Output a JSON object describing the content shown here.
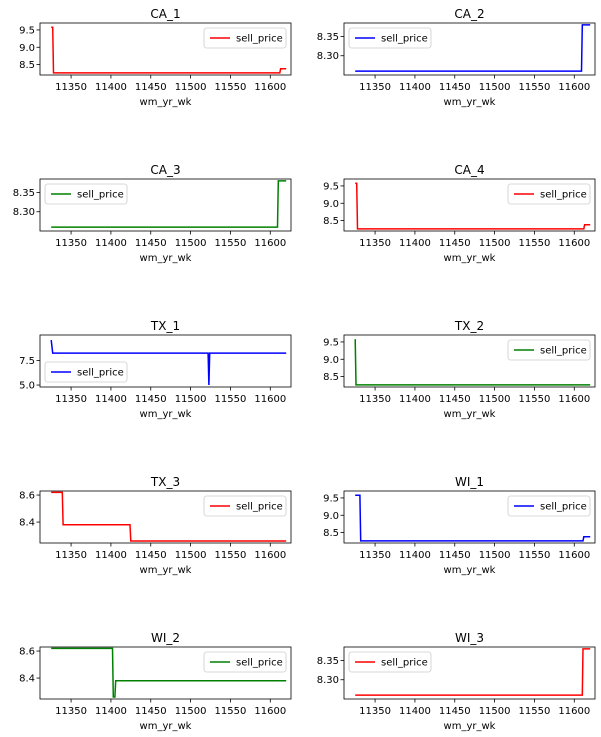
{
  "colors": {
    "red": "#ff0000",
    "blue": "#0000ff",
    "green": "#008000"
  },
  "chart_data": [
    {
      "type": "line",
      "title": "CA_1",
      "xlabel": "wm_yr_wk",
      "ylabel": "",
      "xlim": [
        11311,
        11626
      ],
      "ylim": [
        8.2,
        9.7
      ],
      "xticks": [
        11350,
        11400,
        11450,
        11500,
        11550,
        11600
      ],
      "yticks": [
        8.5,
        9.0,
        9.5
      ],
      "ytick_labels": [
        "8.5",
        "9.0",
        "9.5"
      ],
      "legend": "upper right",
      "series": [
        {
          "name": "sell_price",
          "color": "#ff0000",
          "x": [
            11325,
            11327,
            11328,
            11612,
            11613,
            11620
          ],
          "y": [
            9.58,
            9.58,
            8.26,
            8.26,
            8.38,
            8.38
          ]
        }
      ]
    },
    {
      "type": "line",
      "title": "CA_2",
      "xlabel": "wm_yr_wk",
      "ylabel": "",
      "xlim": [
        11311,
        11626
      ],
      "ylim": [
        8.25,
        8.385
      ],
      "xticks": [
        11350,
        11400,
        11450,
        11500,
        11550,
        11600
      ],
      "yticks": [
        8.3,
        8.35
      ],
      "ytick_labels": [
        "8.30",
        "8.35"
      ],
      "legend": "upper left",
      "series": [
        {
          "name": "sell_price",
          "color": "#0000ff",
          "x": [
            11325,
            11609,
            11610,
            11620
          ],
          "y": [
            8.26,
            8.26,
            8.38,
            8.38
          ]
        }
      ]
    },
    {
      "type": "line",
      "title": "CA_3",
      "xlabel": "wm_yr_wk",
      "ylabel": "",
      "xlim": [
        11311,
        11626
      ],
      "ylim": [
        8.25,
        8.385
      ],
      "xticks": [
        11350,
        11400,
        11450,
        11500,
        11550,
        11600
      ],
      "yticks": [
        8.3,
        8.35
      ],
      "ytick_labels": [
        "8.30",
        "8.35"
      ],
      "legend": "upper left",
      "series": [
        {
          "name": "sell_price",
          "color": "#008000",
          "x": [
            11325,
            11609,
            11610,
            11620
          ],
          "y": [
            8.26,
            8.26,
            8.38,
            8.38
          ]
        }
      ]
    },
    {
      "type": "line",
      "title": "CA_4",
      "xlabel": "wm_yr_wk",
      "ylabel": "",
      "xlim": [
        11311,
        11626
      ],
      "ylim": [
        8.2,
        9.7
      ],
      "xticks": [
        11350,
        11400,
        11450,
        11500,
        11550,
        11600
      ],
      "yticks": [
        8.5,
        9.0,
        9.5
      ],
      "ytick_labels": [
        "8.5",
        "9.0",
        "9.5"
      ],
      "legend": "upper right",
      "series": [
        {
          "name": "sell_price",
          "color": "#ff0000",
          "x": [
            11325,
            11327,
            11328,
            11612,
            11613,
            11620
          ],
          "y": [
            9.58,
            9.58,
            8.26,
            8.26,
            8.38,
            8.38
          ]
        }
      ]
    },
    {
      "type": "line",
      "title": "TX_1",
      "xlabel": "wm_yr_wk",
      "ylabel": "",
      "xlim": [
        11311,
        11626
      ],
      "ylim": [
        4.8,
        10.1
      ],
      "xticks": [
        11350,
        11400,
        11450,
        11500,
        11550,
        11600
      ],
      "yticks": [
        5.0,
        7.5
      ],
      "ytick_labels": [
        "5.0",
        "7.5"
      ],
      "legend": "lower left",
      "series": [
        {
          "name": "sell_price",
          "color": "#0000ff",
          "x": [
            11325,
            11327,
            11522,
            11523,
            11524,
            11620
          ],
          "y": [
            9.58,
            8.26,
            8.26,
            5.0,
            8.26,
            8.26
          ]
        }
      ]
    },
    {
      "type": "line",
      "title": "TX_2",
      "xlabel": "wm_yr_wk",
      "ylabel": "",
      "xlim": [
        11311,
        11626
      ],
      "ylim": [
        8.2,
        9.7
      ],
      "xticks": [
        11350,
        11400,
        11450,
        11500,
        11550,
        11600
      ],
      "yticks": [
        8.5,
        9.0,
        9.5
      ],
      "ytick_labels": [
        "8.5",
        "9.0",
        "9.5"
      ],
      "legend": "upper right",
      "series": [
        {
          "name": "sell_price",
          "color": "#008000",
          "x": [
            11325,
            11326,
            11620
          ],
          "y": [
            9.58,
            8.26,
            8.26
          ]
        }
      ]
    },
    {
      "type": "line",
      "title": "TX_3",
      "xlabel": "wm_yr_wk",
      "ylabel": "",
      "xlim": [
        11311,
        11626
      ],
      "ylim": [
        8.245,
        8.63
      ],
      "xticks": [
        11350,
        11400,
        11450,
        11500,
        11550,
        11600
      ],
      "yticks": [
        8.4,
        8.6
      ],
      "ytick_labels": [
        "8.4",
        "8.6"
      ],
      "legend": "upper right",
      "series": [
        {
          "name": "sell_price",
          "color": "#ff0000",
          "x": [
            11325,
            11339,
            11340,
            11424,
            11425,
            11620
          ],
          "y": [
            8.62,
            8.62,
            8.38,
            8.38,
            8.26,
            8.26
          ]
        }
      ]
    },
    {
      "type": "line",
      "title": "WI_1",
      "xlabel": "wm_yr_wk",
      "ylabel": "",
      "xlim": [
        11311,
        11626
      ],
      "ylim": [
        8.2,
        9.7
      ],
      "xticks": [
        11350,
        11400,
        11450,
        11500,
        11550,
        11600
      ],
      "yticks": [
        8.5,
        9.0,
        9.5
      ],
      "ytick_labels": [
        "8.5",
        "9.0",
        "9.5"
      ],
      "legend": "upper right",
      "series": [
        {
          "name": "sell_price",
          "color": "#0000ff",
          "x": [
            11325,
            11331,
            11332,
            11611,
            11612,
            11620
          ],
          "y": [
            9.58,
            9.58,
            8.26,
            8.26,
            8.38,
            8.38
          ]
        }
      ]
    },
    {
      "type": "line",
      "title": "WI_2",
      "xlabel": "wm_yr_wk",
      "ylabel": "",
      "xlim": [
        11311,
        11626
      ],
      "ylim": [
        8.245,
        8.63
      ],
      "xticks": [
        11350,
        11400,
        11450,
        11500,
        11550,
        11600
      ],
      "yticks": [
        8.4,
        8.6
      ],
      "ytick_labels": [
        "8.4",
        "8.6"
      ],
      "legend": "upper right",
      "series": [
        {
          "name": "sell_price",
          "color": "#008000",
          "x": [
            11325,
            11402,
            11403,
            11405,
            11406,
            11620
          ],
          "y": [
            8.62,
            8.62,
            8.26,
            8.26,
            8.38,
            8.38
          ]
        }
      ]
    },
    {
      "type": "line",
      "title": "WI_3",
      "xlabel": "wm_yr_wk",
      "ylabel": "",
      "xlim": [
        11311,
        11626
      ],
      "ylim": [
        8.25,
        8.385
      ],
      "xticks": [
        11350,
        11400,
        11450,
        11500,
        11550,
        11600
      ],
      "yticks": [
        8.3,
        8.35
      ],
      "ytick_labels": [
        "8.30",
        "8.35"
      ],
      "legend": "upper left",
      "series": [
        {
          "name": "sell_price",
          "color": "#ff0000",
          "x": [
            11325,
            11610,
            11611,
            11620
          ],
          "y": [
            8.26,
            8.26,
            8.38,
            8.38
          ]
        }
      ]
    }
  ]
}
